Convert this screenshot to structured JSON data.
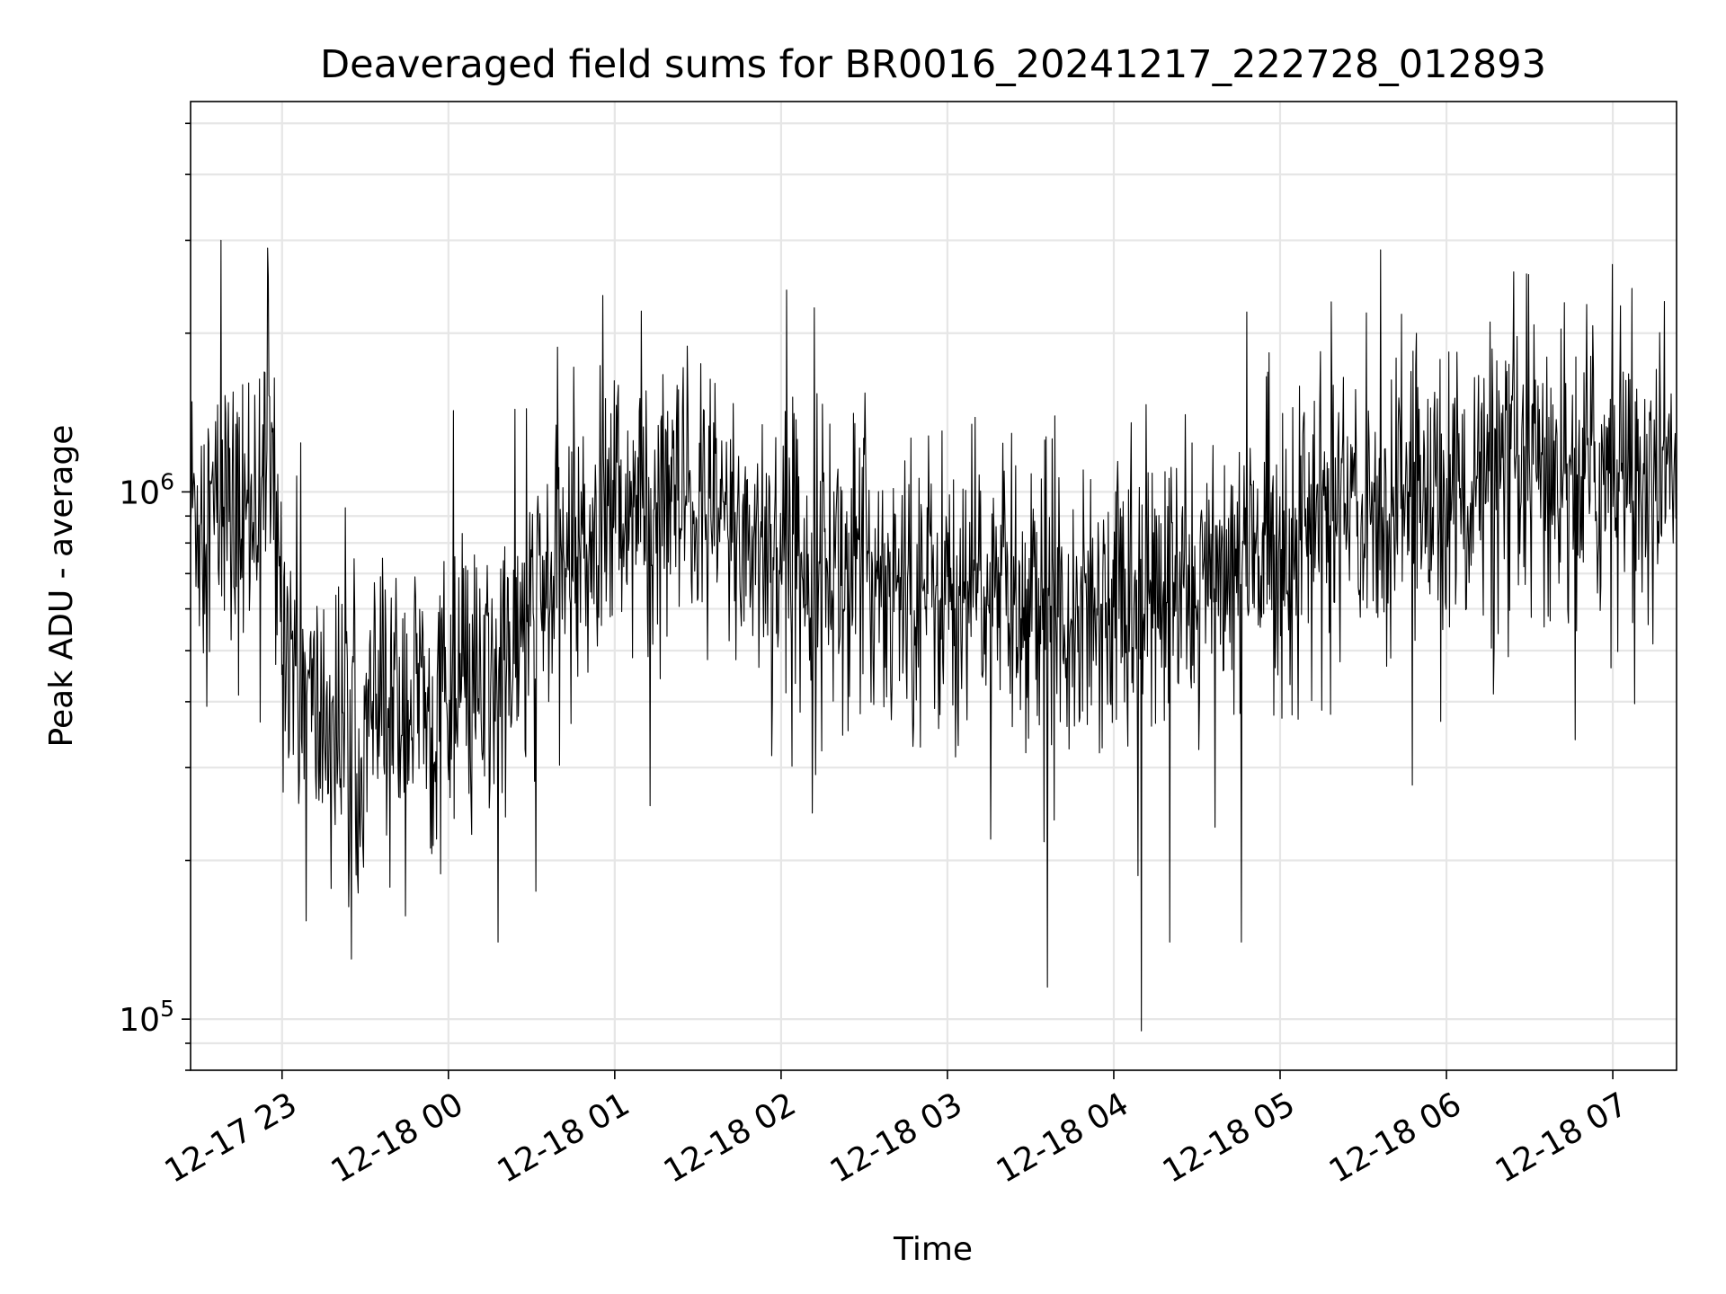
{
  "chart_data": {
    "type": "line",
    "title": "Deaveraged field sums for BR0016_20241217_222728_012893",
    "xlabel": "Time",
    "ylabel": "Peak ADU - average",
    "y_scale": "log",
    "ylim": [
      80000,
      5500000
    ],
    "xlim": [
      "2024-12-17 22:27",
      "2024-12-18 07:23"
    ],
    "x_ticks": [
      {
        "at": "2024-12-17 23:00",
        "label": "12-17 23"
      },
      {
        "at": "2024-12-18 00:00",
        "label": "12-18 00"
      },
      {
        "at": "2024-12-18 01:00",
        "label": "12-18 01"
      },
      {
        "at": "2024-12-18 02:00",
        "label": "12-18 02"
      },
      {
        "at": "2024-12-18 03:00",
        "label": "12-18 03"
      },
      {
        "at": "2024-12-18 04:00",
        "label": "12-18 04"
      },
      {
        "at": "2024-12-18 05:00",
        "label": "12-18 05"
      },
      {
        "at": "2024-12-18 06:00",
        "label": "12-18 06"
      },
      {
        "at": "2024-12-18 07:00",
        "label": "12-18 07"
      }
    ],
    "y_ticks": [
      {
        "value": 100000,
        "base": "10",
        "exp": "5"
      },
      {
        "value": 1000000,
        "base": "10",
        "exp": "6"
      }
    ],
    "grid": true,
    "legend": "none",
    "line_color": "#000000",
    "series": [
      {
        "x": [
          "2024-12-17 22:27",
          "2024-12-17 22:35",
          "2024-12-17 22:45",
          "2024-12-17 22:55",
          "2024-12-17 23:00",
          "2024-12-17 23:10",
          "2024-12-17 23:20",
          "2024-12-17 23:30",
          "2024-12-17 23:45",
          "2024-12-18 00:00",
          "2024-12-18 00:15",
          "2024-12-18 00:30",
          "2024-12-18 00:45",
          "2024-12-18 01:00",
          "2024-12-18 01:30",
          "2024-12-18 02:00",
          "2024-12-18 02:30",
          "2024-12-18 03:00",
          "2024-12-18 03:30",
          "2024-12-18 04:00",
          "2024-12-18 04:30",
          "2024-12-18 05:00",
          "2024-12-18 05:30",
          "2024-12-18 06:00",
          "2024-12-18 06:30",
          "2024-12-18 07:00",
          "2024-12-18 07:23"
        ],
        "y": [
          950000,
          900000,
          850000,
          1200000,
          600000,
          380000,
          350000,
          370000,
          400000,
          380000,
          420000,
          560000,
          800000,
          950000,
          900000,
          780000,
          720000,
          650000,
          630000,
          620000,
          650000,
          820000,
          950000,
          1000000,
          1050000,
          1100000,
          1050000
        ]
      }
    ],
    "spikes": [
      {
        "x": "2024-12-17 22:38",
        "y": 3000000
      },
      {
        "x": "2024-12-17 22:55",
        "y": 2900000
      },
      {
        "x": "2024-12-17 23:25",
        "y": 130000
      },
      {
        "x": "2024-12-18 00:18",
        "y": 140000
      },
      {
        "x": "2024-12-18 03:36",
        "y": 115000
      },
      {
        "x": "2024-12-18 04:10",
        "y": 95000
      },
      {
        "x": "2024-12-18 04:20",
        "y": 140000
      },
      {
        "x": "2024-12-18 04:46",
        "y": 140000
      },
      {
        "x": "2024-12-18 07:00",
        "y": 2700000
      }
    ]
  }
}
